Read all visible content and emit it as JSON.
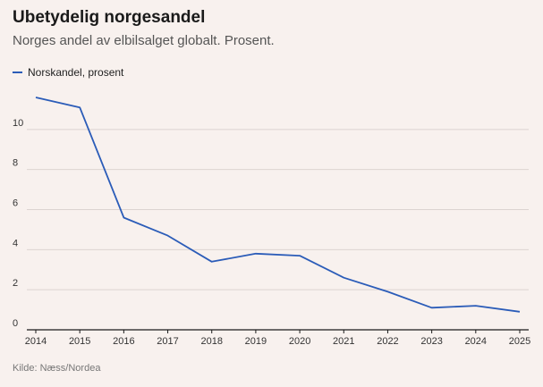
{
  "chart_data": {
    "type": "line",
    "title": "Ubetydelig norgesandel",
    "subtitle": "Norges andel av elbilsalget globalt. Prosent.",
    "categories": [
      "2014",
      "2015",
      "2016",
      "2017",
      "2018",
      "2019",
      "2020",
      "2021",
      "2022",
      "2023",
      "2024",
      "2025"
    ],
    "series": [
      {
        "name": "Norskandel, prosent",
        "color": "#2b5cb8",
        "values": [
          11.6,
          11.1,
          5.6,
          4.7,
          3.4,
          3.8,
          3.7,
          2.6,
          1.9,
          1.1,
          1.2,
          0.9
        ]
      }
    ],
    "y_ticks": [
      0,
      2,
      4,
      6,
      8,
      10
    ],
    "ylim": [
      0,
      12
    ],
    "xlabel": "",
    "ylabel": "",
    "grid": true,
    "legend": "top-left",
    "source": "Kilde: Næss/Nordea"
  }
}
